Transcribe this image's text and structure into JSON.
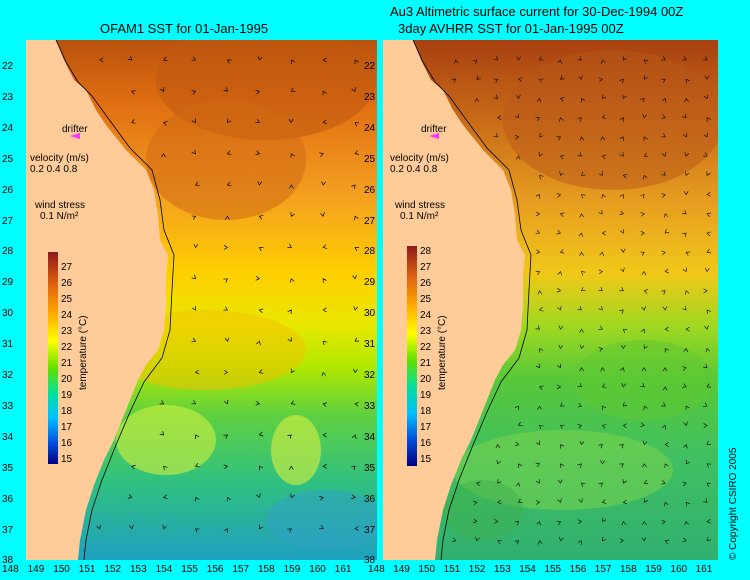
{
  "left_panel": {
    "title": "OFAM1 SST for 01-Jan-1995",
    "legend": {
      "drifter": "drifter",
      "velocity_title": "velocity (m/s)",
      "velocity_scale": "0.2 0.4 0.8",
      "wind_title": "wind stress",
      "wind_scale": "0.1 N/m²"
    },
    "colorbar": {
      "title": "temperature (°C)",
      "ticks": [
        "27",
        "26",
        "25",
        "24",
        "23",
        "22",
        "21",
        "20",
        "19",
        "18",
        "17",
        "16",
        "15"
      ]
    }
  },
  "right_panel": {
    "title_line1": "Au3 Altimetric surface current for 30-Dec-1994 00Z",
    "title_line2": "3day AVHRR SST for 01-Jan-1995 00Z",
    "legend": {
      "drifter": "drifter",
      "velocity_title": "velocity (m/s)",
      "velocity_scale": "0.2 0.4 0.8",
      "wind_title": "wind stress",
      "wind_scale": "0.1 N/m²"
    },
    "colorbar": {
      "title": "temperature (°C)",
      "ticks": [
        "28",
        "27",
        "26",
        "25",
        "24",
        "23",
        "22",
        "21",
        "20",
        "19",
        "18",
        "17",
        "16",
        "15"
      ]
    }
  },
  "lat_labels": [
    "22",
    "23",
    "24",
    "25",
    "26",
    "27",
    "28",
    "29",
    "30",
    "31",
    "32",
    "33",
    "34",
    "35",
    "36",
    "37",
    "38"
  ],
  "lon_labels": [
    "148",
    "149",
    "150",
    "151",
    "152",
    "153",
    "154",
    "155",
    "156",
    "157",
    "158",
    "159",
    "160",
    "161"
  ],
  "copyright": "© Copyright CSIRO 2005",
  "colors": {
    "land": "#ffcc99",
    "background": "#00ffff",
    "drifter": "#ff33ff"
  }
}
